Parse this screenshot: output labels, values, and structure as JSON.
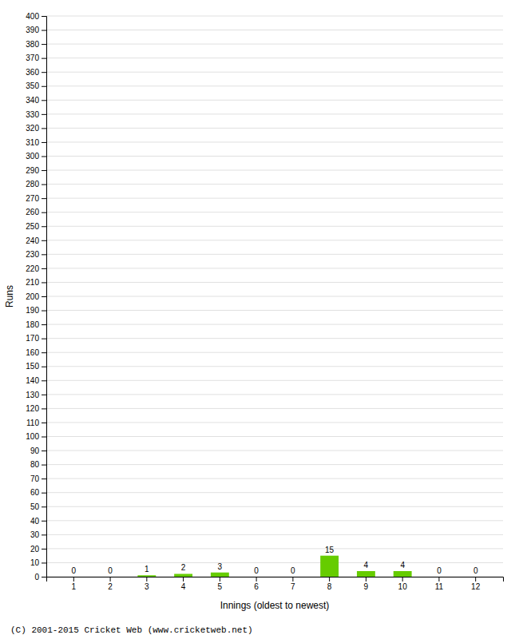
{
  "chart_data": {
    "type": "bar",
    "xlabel": "Innings (oldest to newest)",
    "ylabel": "Runs",
    "categories": [
      1,
      2,
      3,
      4,
      5,
      6,
      7,
      8,
      9,
      10,
      11,
      12
    ],
    "values": [
      0,
      0,
      1,
      2,
      3,
      0,
      0,
      15,
      4,
      4,
      0,
      0
    ],
    "color": "#66cc00",
    "ylim": [
      0,
      400
    ],
    "yticks": [
      0,
      10,
      20,
      30,
      40,
      50,
      60,
      70,
      80,
      90,
      100,
      110,
      120,
      130,
      140,
      150,
      160,
      170,
      180,
      190,
      200,
      210,
      220,
      230,
      240,
      250,
      260,
      270,
      280,
      290,
      300,
      310,
      320,
      330,
      340,
      350,
      360,
      370,
      380,
      390,
      400
    ],
    "grid": true,
    "data_labels": true,
    "annotations": [
      "(C) 2001-2015 Cricket Web (www.cricketweb.net)"
    ]
  }
}
